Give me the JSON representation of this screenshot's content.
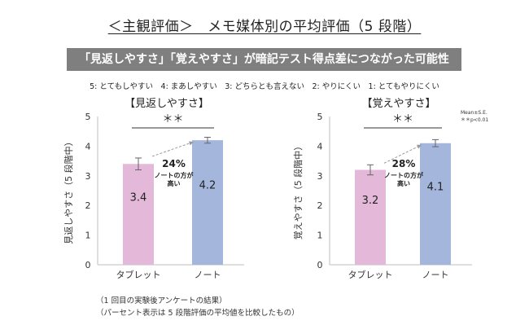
{
  "title": "＜主観評価＞　メモ媒体別の平均評価（5 段階）",
  "banner": "「見返しやすさ」「覚えやすさ」が暗記テスト得点差につながった可能性",
  "scale_note": "5: とてもしやすい　4: まあしやすい　3: どちらとも言えない　2: やりにくい　1: とてもやりにくい",
  "mean_note": [
    "Mean±S.E.",
    "＊＊p<0.01"
  ],
  "footnotes": [
    "（1 回目の実験後アンケートの結果）",
    "（パーセント表示は 5 段階評価の平均値を比較したもの）"
  ],
  "colors": {
    "tablet": "#e3b8d8",
    "note": "#a4b6dc",
    "axis": "#bfbfbf"
  },
  "chart_data": [
    {
      "type": "bar",
      "title": "【見返しやすさ】",
      "ylabel": "見返しやすさ（5 段階中）",
      "categories": [
        "タブレット",
        "ノート"
      ],
      "values": [
        3.4,
        4.2
      ],
      "value_labels": [
        "3.4",
        "4.2"
      ],
      "errors": [
        0.2,
        0.1
      ],
      "ylim": [
        0,
        5
      ],
      "yticks": [
        "0",
        "1",
        "2",
        "3",
        "4",
        "5"
      ],
      "significance": "＊＊",
      "diff_percent": "24%",
      "diff_note": [
        "ノートの方が",
        "高い"
      ]
    },
    {
      "type": "bar",
      "title": "【覚えやすさ】",
      "ylabel": "覚えやすさ（5 段階中）",
      "categories": [
        "タブレット",
        "ノート"
      ],
      "values": [
        3.2,
        4.1
      ],
      "value_labels": [
        "3.2",
        "4.1"
      ],
      "errors": [
        0.17,
        0.12
      ],
      "ylim": [
        0,
        5
      ],
      "yticks": [
        "0",
        "1",
        "2",
        "3",
        "4",
        "5"
      ],
      "significance": "＊＊",
      "diff_percent": "28%",
      "diff_note": [
        "ノートの方が",
        "高い"
      ]
    }
  ]
}
